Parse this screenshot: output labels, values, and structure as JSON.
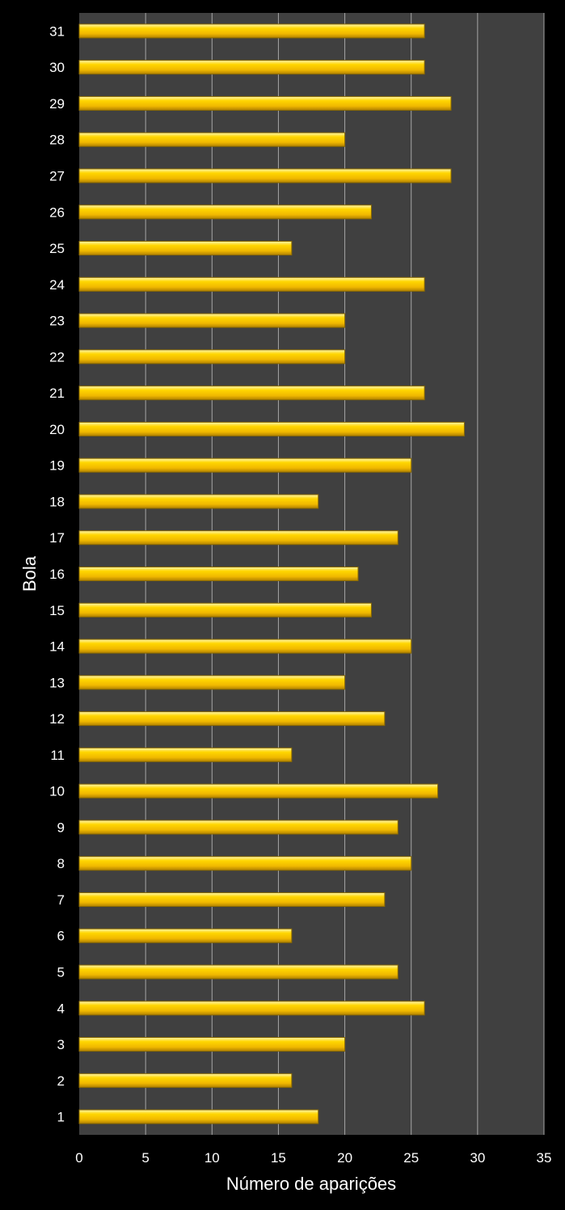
{
  "chart_data": {
    "type": "bar",
    "orientation": "horizontal",
    "title": "",
    "xlabel": "Número de aparições",
    "ylabel": "Bola",
    "xlim": [
      0,
      35
    ],
    "x_ticks": [
      "0",
      "5",
      "10",
      "15",
      "20",
      "25",
      "30",
      "35"
    ],
    "categories": [
      "1",
      "2",
      "3",
      "4",
      "5",
      "6",
      "7",
      "8",
      "9",
      "10",
      "11",
      "12",
      "13",
      "14",
      "15",
      "16",
      "17",
      "18",
      "19",
      "20",
      "21",
      "22",
      "23",
      "24",
      "25",
      "26",
      "27",
      "28",
      "29",
      "30",
      "31"
    ],
    "values": [
      18,
      16,
      20,
      26,
      24,
      16,
      23,
      25,
      24,
      27,
      16,
      23,
      20,
      25,
      22,
      21,
      24,
      18,
      25,
      29,
      26,
      20,
      20,
      26,
      16,
      22,
      28,
      20,
      28,
      26,
      26
    ],
    "grid": "vertical",
    "legend": "none",
    "colors": {
      "background": "#000000",
      "plot_area": "#404040",
      "gridline": "#a6a6a6",
      "bar_fill": "#f5c400",
      "bar_highlight": "#fff2a0",
      "bar_edge": "#8a6a00",
      "text": "#ffffff"
    }
  }
}
